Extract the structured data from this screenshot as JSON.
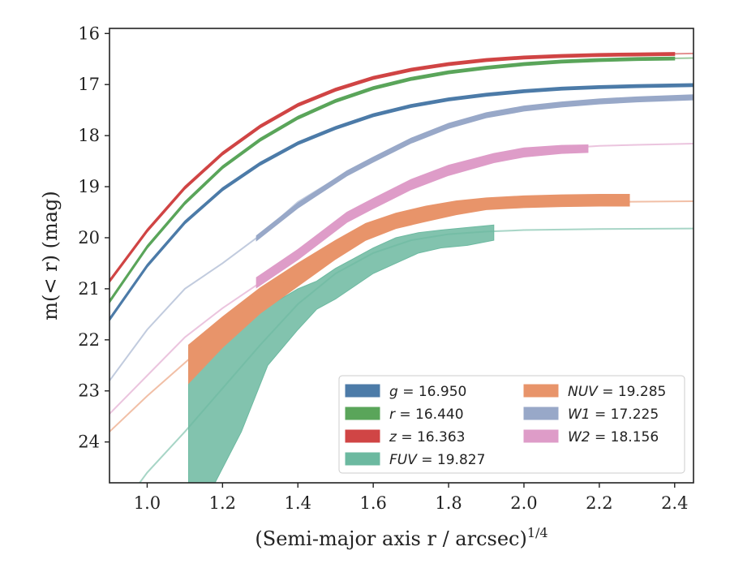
{
  "chart_data": {
    "type": "line",
    "xlabel": "(Semi-major axis r / arcsec)",
    "xlabel_sup": "1/4",
    "ylabel": "m(< r) (mag)",
    "xlim": [
      0.9,
      2.45
    ],
    "ylim": [
      24.8,
      15.9
    ],
    "y_inverted": true,
    "grid": false,
    "legend_position": "lower-right",
    "xticks": [
      "1.0",
      "1.2",
      "1.4",
      "1.6",
      "1.8",
      "2.0",
      "2.2",
      "2.4"
    ],
    "yticks": [
      "16",
      "17",
      "18",
      "19",
      "20",
      "21",
      "22",
      "23",
      "24"
    ],
    "series": [
      {
        "key": "g",
        "label": "g = 16.950",
        "color": "#4c7ba8",
        "model": [
          [
            0.9,
            21.6
          ],
          [
            1.0,
            20.55
          ],
          [
            1.1,
            19.7
          ],
          [
            1.2,
            19.05
          ],
          [
            1.3,
            18.55
          ],
          [
            1.4,
            18.15
          ],
          [
            1.5,
            17.85
          ],
          [
            1.6,
            17.6
          ],
          [
            1.7,
            17.42
          ],
          [
            1.8,
            17.29
          ],
          [
            1.9,
            17.2
          ],
          [
            2.0,
            17.13
          ],
          [
            2.1,
            17.08
          ],
          [
            2.2,
            17.05
          ],
          [
            2.3,
            17.03
          ],
          [
            2.45,
            17.01
          ]
        ],
        "band_x": [
          0.9,
          1.0,
          1.1,
          1.2,
          1.3,
          1.4,
          1.5,
          1.6,
          1.7,
          1.8,
          1.9,
          2.0,
          2.1,
          2.2,
          2.3,
          2.45
        ],
        "band_lo": [
          21.57,
          20.52,
          19.67,
          19.02,
          18.52,
          18.12,
          17.82,
          17.57,
          17.39,
          17.26,
          17.17,
          17.1,
          17.05,
          17.02,
          17.0,
          16.98
        ],
        "band_hi": [
          21.63,
          20.58,
          19.73,
          19.08,
          18.58,
          18.18,
          17.88,
          17.63,
          17.45,
          17.32,
          17.23,
          17.16,
          17.11,
          17.08,
          17.06,
          17.04
        ]
      },
      {
        "key": "r",
        "label": "r = 16.440",
        "color": "#5aa55a",
        "model": [
          [
            0.9,
            21.25
          ],
          [
            1.0,
            20.18
          ],
          [
            1.1,
            19.32
          ],
          [
            1.2,
            18.62
          ],
          [
            1.3,
            18.08
          ],
          [
            1.4,
            17.65
          ],
          [
            1.5,
            17.32
          ],
          [
            1.6,
            17.07
          ],
          [
            1.7,
            16.89
          ],
          [
            1.8,
            16.76
          ],
          [
            1.9,
            16.67
          ],
          [
            2.0,
            16.6
          ],
          [
            2.1,
            16.55
          ],
          [
            2.2,
            16.52
          ],
          [
            2.3,
            16.5
          ],
          [
            2.45,
            16.48
          ]
        ],
        "band_x": [
          0.9,
          1.0,
          1.1,
          1.2,
          1.3,
          1.4,
          1.5,
          1.6,
          1.7,
          1.8,
          1.9,
          2.0,
          2.1,
          2.2,
          2.3,
          2.4
        ],
        "band_lo": [
          21.22,
          20.15,
          19.29,
          18.59,
          18.05,
          17.62,
          17.29,
          17.04,
          16.86,
          16.73,
          16.64,
          16.57,
          16.52,
          16.49,
          16.47,
          16.46
        ],
        "band_hi": [
          21.28,
          20.21,
          19.35,
          18.65,
          18.11,
          17.68,
          17.35,
          17.1,
          16.92,
          16.79,
          16.7,
          16.63,
          16.58,
          16.55,
          16.53,
          16.52
        ]
      },
      {
        "key": "z",
        "label": "z = 16.363",
        "color": "#d04545",
        "model": [
          [
            0.9,
            20.85
          ],
          [
            1.0,
            19.86
          ],
          [
            1.1,
            19.02
          ],
          [
            1.2,
            18.35
          ],
          [
            1.3,
            17.82
          ],
          [
            1.4,
            17.4
          ],
          [
            1.5,
            17.1
          ],
          [
            1.6,
            16.87
          ],
          [
            1.7,
            16.71
          ],
          [
            1.8,
            16.6
          ],
          [
            1.9,
            16.52
          ],
          [
            2.0,
            16.47
          ],
          [
            2.1,
            16.44
          ],
          [
            2.2,
            16.42
          ],
          [
            2.3,
            16.41
          ],
          [
            2.45,
            16.39
          ]
        ],
        "band_x": [
          0.9,
          1.0,
          1.1,
          1.2,
          1.3,
          1.4,
          1.5,
          1.6,
          1.7,
          1.8,
          1.9,
          2.0,
          2.1,
          2.2,
          2.3,
          2.4
        ],
        "band_lo": [
          20.82,
          19.83,
          18.99,
          18.32,
          17.79,
          17.37,
          17.07,
          16.84,
          16.68,
          16.57,
          16.49,
          16.44,
          16.41,
          16.39,
          16.38,
          16.37
        ],
        "band_hi": [
          20.88,
          19.89,
          19.05,
          18.38,
          17.85,
          17.43,
          17.13,
          16.9,
          16.74,
          16.63,
          16.55,
          16.5,
          16.47,
          16.45,
          16.44,
          16.43
        ]
      },
      {
        "key": "FUV",
        "label": "FUV = 19.827",
        "color": "#6cb9a0",
        "model": [
          [
            0.9,
            25.6
          ],
          [
            1.0,
            24.6
          ],
          [
            1.1,
            23.8
          ],
          [
            1.2,
            22.95
          ],
          [
            1.3,
            22.1
          ],
          [
            1.4,
            21.3
          ],
          [
            1.5,
            20.7
          ],
          [
            1.6,
            20.3
          ],
          [
            1.7,
            20.05
          ],
          [
            1.8,
            19.93
          ],
          [
            1.9,
            19.88
          ],
          [
            2.0,
            19.85
          ],
          [
            2.2,
            19.83
          ],
          [
            2.45,
            19.82
          ]
        ],
        "band_x": [
          1.11,
          1.18,
          1.25,
          1.32,
          1.4,
          1.45,
          1.5,
          1.55,
          1.6,
          1.66,
          1.72,
          1.78,
          1.85,
          1.92
        ],
        "band_lo": [
          22.15,
          21.9,
          21.6,
          21.35,
          21.0,
          20.85,
          20.6,
          20.4,
          20.2,
          20.0,
          19.9,
          19.85,
          19.8,
          19.75
        ],
        "band_hi": [
          24.8,
          24.8,
          23.8,
          22.5,
          21.8,
          21.4,
          21.2,
          20.95,
          20.7,
          20.5,
          20.3,
          20.2,
          20.15,
          20.05
        ]
      },
      {
        "key": "NUV",
        "label": "NUV = 19.285",
        "color": "#e8946a",
        "model": [
          [
            0.9,
            23.8
          ],
          [
            1.0,
            23.1
          ],
          [
            1.1,
            22.45
          ],
          [
            1.2,
            21.8
          ],
          [
            1.3,
            21.22
          ],
          [
            1.4,
            20.7
          ],
          [
            1.5,
            20.25
          ],
          [
            1.6,
            19.9
          ],
          [
            1.7,
            19.65
          ],
          [
            1.8,
            19.48
          ],
          [
            1.9,
            19.38
          ],
          [
            2.0,
            19.33
          ],
          [
            2.2,
            19.3
          ],
          [
            2.45,
            19.285
          ]
        ],
        "band_x": [
          1.11,
          1.2,
          1.3,
          1.4,
          1.5,
          1.58,
          1.66,
          1.74,
          1.82,
          1.9,
          2.0,
          2.1,
          2.2,
          2.28
        ],
        "band_lo": [
          22.1,
          21.55,
          20.98,
          20.5,
          20.05,
          19.72,
          19.52,
          19.38,
          19.28,
          19.22,
          19.18,
          19.16,
          19.15,
          19.15
        ],
        "band_hi": [
          22.85,
          22.15,
          21.48,
          20.95,
          20.42,
          20.05,
          19.82,
          19.68,
          19.55,
          19.45,
          19.41,
          19.39,
          19.38,
          19.38
        ]
      },
      {
        "key": "W1",
        "label": "W1 = 17.225",
        "color": "#98a8c8",
        "model": [
          [
            0.9,
            22.8
          ],
          [
            1.0,
            21.8
          ],
          [
            1.1,
            21.0
          ],
          [
            1.2,
            20.5
          ],
          [
            1.3,
            19.95
          ],
          [
            1.4,
            19.3
          ],
          [
            1.5,
            18.85
          ],
          [
            1.6,
            18.5
          ],
          [
            1.7,
            18.12
          ],
          [
            1.8,
            17.82
          ],
          [
            1.9,
            17.6
          ],
          [
            2.0,
            17.47
          ],
          [
            2.1,
            17.38
          ],
          [
            2.2,
            17.32
          ],
          [
            2.3,
            17.28
          ],
          [
            2.45,
            17.24
          ]
        ],
        "band_x": [
          1.29,
          1.4,
          1.53,
          1.6,
          1.7,
          1.8,
          1.9,
          2.0,
          2.1,
          2.2,
          2.3,
          2.45
        ],
        "band_lo": [
          19.96,
          19.32,
          18.69,
          18.42,
          18.05,
          17.76,
          17.55,
          17.42,
          17.34,
          17.28,
          17.24,
          17.2
        ],
        "band_hi": [
          20.06,
          19.42,
          18.79,
          18.52,
          18.15,
          17.86,
          17.65,
          17.52,
          17.44,
          17.38,
          17.34,
          17.3
        ]
      },
      {
        "key": "W2",
        "label": "W2 = 18.156",
        "color": "#de9cc8",
        "model": [
          [
            0.9,
            23.45
          ],
          [
            1.0,
            22.7
          ],
          [
            1.1,
            21.95
          ],
          [
            1.2,
            21.38
          ],
          [
            1.3,
            20.88
          ],
          [
            1.4,
            20.33
          ],
          [
            1.5,
            19.75
          ],
          [
            1.6,
            19.3
          ],
          [
            1.7,
            18.95
          ],
          [
            1.8,
            18.65
          ],
          [
            1.9,
            18.45
          ],
          [
            2.0,
            18.32
          ],
          [
            2.1,
            18.25
          ],
          [
            2.2,
            18.2
          ],
          [
            2.3,
            18.18
          ],
          [
            2.45,
            18.156
          ]
        ],
        "band_x": [
          1.29,
          1.4,
          1.53,
          1.6,
          1.7,
          1.8,
          1.92,
          2.0,
          2.1,
          2.17
        ],
        "band_lo": [
          20.78,
          20.23,
          19.5,
          19.23,
          18.86,
          18.58,
          18.35,
          18.24,
          18.19,
          18.18
        ],
        "band_hi": [
          20.98,
          20.43,
          19.7,
          19.43,
          19.06,
          18.78,
          18.53,
          18.42,
          18.35,
          18.33
        ]
      }
    ],
    "legend": [
      {
        "key": "g",
        "math": "g",
        "value": " = 16.950"
      },
      {
        "key": "r",
        "math": "r",
        "value": " = 16.440"
      },
      {
        "key": "z",
        "math": "z",
        "value": " = 16.363"
      },
      {
        "key": "FUV",
        "math": "FUV",
        "value": " = 19.827"
      },
      {
        "key": "NUV",
        "math": "NUV",
        "value": " = 19.285"
      },
      {
        "key": "W1",
        "math": "W1",
        "value": " = 17.225"
      },
      {
        "key": "W2",
        "math": "W2",
        "value": " = 18.156"
      }
    ]
  }
}
